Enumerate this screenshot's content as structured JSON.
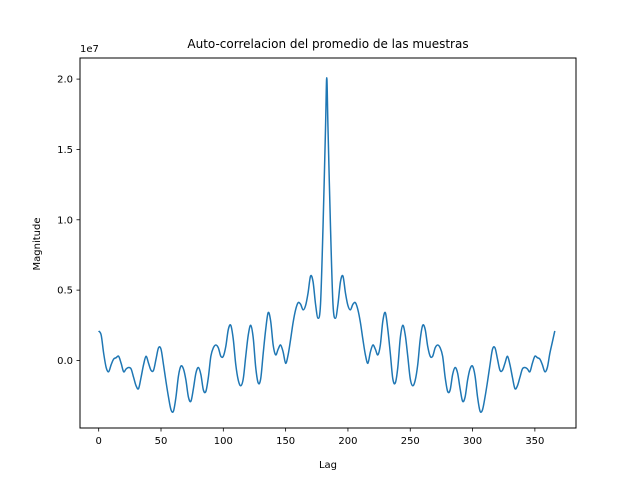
{
  "chart_data": {
    "type": "line",
    "title": "Auto-correlacion del promedio de las muestras",
    "xlabel": "Lag",
    "ylabel": "Magnitude",
    "y_offset_text": "1e7",
    "xlim": [
      -15,
      383
    ],
    "ylim": [
      -4.8,
      21.5
    ],
    "x_ticks": [
      0,
      50,
      100,
      150,
      200,
      250,
      300,
      350
    ],
    "x_tick_labels": [
      "0",
      "50",
      "100",
      "150",
      "200",
      "250",
      "300",
      "350"
    ],
    "y_ticks": [
      0,
      5,
      10,
      15,
      20
    ],
    "y_tick_labels": [
      "0.0",
      "0.5",
      "1.0",
      "1.5",
      "2.0"
    ],
    "grid": false,
    "series": [
      {
        "color": "#1f77b4",
        "points": [
          [
            0,
            2.1
          ],
          [
            2,
            1.8
          ],
          [
            4,
            0.5
          ],
          [
            6,
            -0.5
          ],
          [
            8,
            -0.8
          ],
          [
            10,
            -0.3
          ],
          [
            12,
            0.1
          ],
          [
            14,
            0.2
          ],
          [
            16,
            0.3
          ],
          [
            18,
            -0.2
          ],
          [
            20,
            -0.8
          ],
          [
            22,
            -0.6
          ],
          [
            24,
            -0.5
          ],
          [
            26,
            -0.6
          ],
          [
            28,
            -1.2
          ],
          [
            30,
            -1.8
          ],
          [
            32,
            -2.0
          ],
          [
            34,
            -1.2
          ],
          [
            36,
            -0.3
          ],
          [
            38,
            0.3
          ],
          [
            40,
            -0.2
          ],
          [
            42,
            -0.7
          ],
          [
            44,
            -0.7
          ],
          [
            46,
            0.1
          ],
          [
            48,
            0.9
          ],
          [
            50,
            0.8
          ],
          [
            52,
            -0.3
          ],
          [
            54,
            -1.5
          ],
          [
            56,
            -2.6
          ],
          [
            58,
            -3.5
          ],
          [
            60,
            -3.6
          ],
          [
            62,
            -2.6
          ],
          [
            64,
            -1.1
          ],
          [
            66,
            -0.4
          ],
          [
            68,
            -0.6
          ],
          [
            70,
            -1.4
          ],
          [
            72,
            -2.6
          ],
          [
            74,
            -2.9
          ],
          [
            76,
            -2.0
          ],
          [
            78,
            -0.9
          ],
          [
            80,
            -0.5
          ],
          [
            82,
            -1.0
          ],
          [
            84,
            -2.1
          ],
          [
            86,
            -2.2
          ],
          [
            88,
            -1.2
          ],
          [
            90,
            0.3
          ],
          [
            92,
            0.9
          ],
          [
            94,
            1.1
          ],
          [
            96,
            0.9
          ],
          [
            98,
            0.3
          ],
          [
            100,
            0.3
          ],
          [
            102,
            1.0
          ],
          [
            104,
            2.2
          ],
          [
            106,
            2.5
          ],
          [
            108,
            1.5
          ],
          [
            110,
            -0.3
          ],
          [
            112,
            -1.4
          ],
          [
            114,
            -1.8
          ],
          [
            116,
            -1.3
          ],
          [
            118,
            0.3
          ],
          [
            120,
            1.8
          ],
          [
            122,
            2.5
          ],
          [
            124,
            1.6
          ],
          [
            126,
            -0.5
          ],
          [
            128,
            -1.6
          ],
          [
            130,
            -1.3
          ],
          [
            132,
            0.5
          ],
          [
            134,
            2.2
          ],
          [
            136,
            3.4
          ],
          [
            138,
            2.8
          ],
          [
            140,
            1.1
          ],
          [
            142,
            0.4
          ],
          [
            144,
            0.8
          ],
          [
            146,
            1.1
          ],
          [
            148,
            0.6
          ],
          [
            150,
            -0.2
          ],
          [
            152,
            0.4
          ],
          [
            154,
            1.5
          ],
          [
            156,
            2.7
          ],
          [
            158,
            3.6
          ],
          [
            160,
            4.1
          ],
          [
            162,
            4.0
          ],
          [
            164,
            3.6
          ],
          [
            166,
            3.9
          ],
          [
            168,
            4.8
          ],
          [
            170,
            6.0
          ],
          [
            172,
            5.6
          ],
          [
            174,
            4.0
          ],
          [
            176,
            3.0
          ],
          [
            178,
            4.0
          ],
          [
            180,
            9.5
          ],
          [
            182,
            16.5
          ],
          [
            183,
            20.1
          ],
          [
            184,
            16.5
          ],
          [
            186,
            9.5
          ],
          [
            188,
            4.0
          ],
          [
            190,
            3.0
          ],
          [
            192,
            4.0
          ],
          [
            194,
            5.6
          ],
          [
            196,
            6.0
          ],
          [
            198,
            4.8
          ],
          [
            200,
            3.9
          ],
          [
            202,
            3.6
          ],
          [
            204,
            4.0
          ],
          [
            206,
            4.1
          ],
          [
            208,
            3.6
          ],
          [
            210,
            2.7
          ],
          [
            212,
            1.5
          ],
          [
            214,
            0.4
          ],
          [
            216,
            -0.2
          ],
          [
            218,
            0.6
          ],
          [
            220,
            1.1
          ],
          [
            222,
            0.8
          ],
          [
            224,
            0.4
          ],
          [
            226,
            1.1
          ],
          [
            228,
            2.8
          ],
          [
            230,
            3.4
          ],
          [
            232,
            2.2
          ],
          [
            234,
            0.5
          ],
          [
            236,
            -1.3
          ],
          [
            238,
            -1.6
          ],
          [
            240,
            -0.5
          ],
          [
            242,
            1.6
          ],
          [
            244,
            2.5
          ],
          [
            246,
            1.8
          ],
          [
            248,
            0.3
          ],
          [
            250,
            -1.3
          ],
          [
            252,
            -1.8
          ],
          [
            254,
            -1.4
          ],
          [
            256,
            -0.3
          ],
          [
            258,
            1.5
          ],
          [
            260,
            2.5
          ],
          [
            262,
            2.2
          ],
          [
            264,
            1.0
          ],
          [
            266,
            0.3
          ],
          [
            268,
            0.3
          ],
          [
            270,
            0.9
          ],
          [
            272,
            1.1
          ],
          [
            274,
            0.9
          ],
          [
            276,
            0.3
          ],
          [
            278,
            -1.2
          ],
          [
            280,
            -2.2
          ],
          [
            282,
            -2.1
          ],
          [
            284,
            -1.0
          ],
          [
            286,
            -0.5
          ],
          [
            288,
            -0.9
          ],
          [
            290,
            -2.0
          ],
          [
            292,
            -2.9
          ],
          [
            294,
            -2.6
          ],
          [
            296,
            -1.4
          ],
          [
            298,
            -0.6
          ],
          [
            300,
            -0.4
          ],
          [
            302,
            -1.1
          ],
          [
            304,
            -2.6
          ],
          [
            306,
            -3.6
          ],
          [
            308,
            -3.5
          ],
          [
            310,
            -2.6
          ],
          [
            312,
            -1.5
          ],
          [
            314,
            -0.3
          ],
          [
            316,
            0.8
          ],
          [
            318,
            0.9
          ],
          [
            320,
            0.1
          ],
          [
            322,
            -0.7
          ],
          [
            324,
            -0.7
          ],
          [
            326,
            -0.2
          ],
          [
            328,
            0.3
          ],
          [
            330,
            -0.3
          ],
          [
            332,
            -1.2
          ],
          [
            334,
            -2.0
          ],
          [
            336,
            -1.8
          ],
          [
            338,
            -1.2
          ],
          [
            340,
            -0.6
          ],
          [
            342,
            -0.5
          ],
          [
            344,
            -0.6
          ],
          [
            346,
            -0.8
          ],
          [
            348,
            -0.2
          ],
          [
            350,
            0.3
          ],
          [
            352,
            0.2
          ],
          [
            354,
            0.1
          ],
          [
            356,
            -0.3
          ],
          [
            358,
            -0.8
          ],
          [
            360,
            -0.5
          ],
          [
            362,
            0.5
          ],
          [
            364,
            1.3
          ],
          [
            366,
            2.1
          ]
        ]
      }
    ]
  }
}
